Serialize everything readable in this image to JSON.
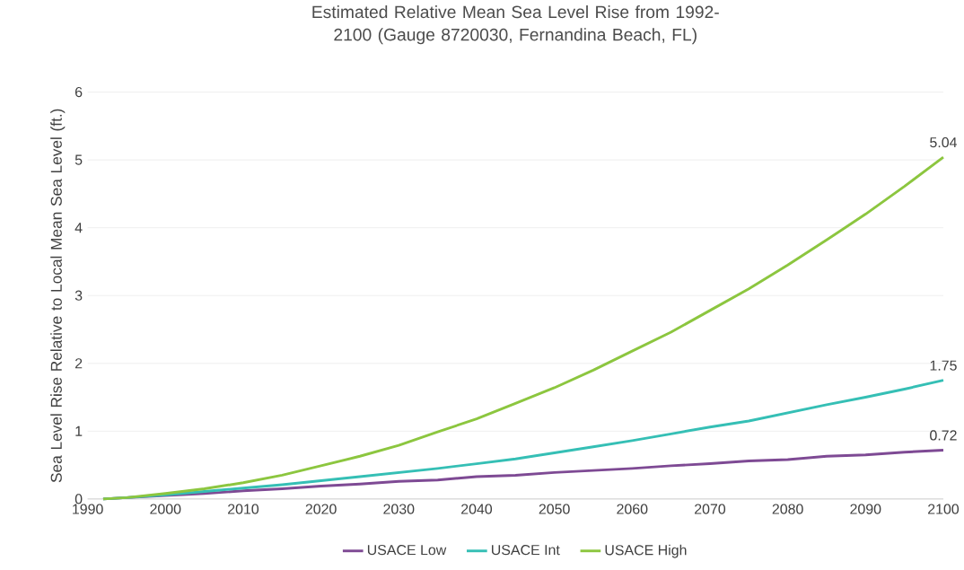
{
  "chart_data": {
    "type": "line",
    "title": "Estimated Relative Mean Sea Level Rise from 1992-2100 (Gauge 8720030, Fernandina Beach, FL)",
    "ylabel": "Sea Level Rise Relative to Local Mean Sea Level (ft.)",
    "x": [
      1992,
      1995,
      2000,
      2005,
      2010,
      2015,
      2020,
      2025,
      2030,
      2035,
      2040,
      2045,
      2050,
      2055,
      2060,
      2065,
      2070,
      2075,
      2080,
      2085,
      2090,
      2095,
      2100
    ],
    "series": [
      {
        "name": "USACE Low",
        "color": "#7e4a94",
        "values": [
          0,
          0.02,
          0.05,
          0.08,
          0.12,
          0.15,
          0.19,
          0.22,
          0.26,
          0.28,
          0.33,
          0.35,
          0.39,
          0.42,
          0.45,
          0.49,
          0.52,
          0.56,
          0.58,
          0.63,
          0.65,
          0.69,
          0.72
        ],
        "value_labels": [
          null,
          null,
          null,
          null,
          null,
          null,
          null,
          null,
          null,
          null,
          null,
          null,
          null,
          null,
          null,
          null,
          null,
          null,
          null,
          null,
          null,
          null,
          "0.72"
        ]
      },
      {
        "name": "USACE Int",
        "color": "#35bfb5",
        "values": [
          0,
          0.02,
          0.06,
          0.11,
          0.16,
          0.21,
          0.27,
          0.33,
          0.39,
          0.45,
          0.52,
          0.59,
          0.68,
          0.77,
          0.86,
          0.96,
          1.06,
          1.15,
          1.27,
          1.39,
          1.5,
          1.62,
          1.75
        ],
        "value_labels": [
          null,
          null,
          null,
          null,
          null,
          null,
          null,
          null,
          null,
          null,
          null,
          null,
          null,
          null,
          null,
          null,
          null,
          null,
          null,
          null,
          null,
          null,
          "1.75"
        ]
      },
      {
        "name": "USACE High",
        "color": "#8cc63f",
        "values": [
          0,
          0.02,
          0.08,
          0.15,
          0.24,
          0.35,
          0.49,
          0.63,
          0.79,
          0.99,
          1.18,
          1.41,
          1.64,
          1.9,
          2.18,
          2.46,
          2.78,
          3.1,
          3.45,
          3.82,
          4.2,
          4.61,
          5.04
        ],
        "value_labels": [
          null,
          null,
          null,
          null,
          null,
          null,
          null,
          null,
          null,
          null,
          null,
          null,
          null,
          null,
          null,
          null,
          null,
          null,
          null,
          null,
          null,
          null,
          "5.04"
        ]
      }
    ],
    "xlim": [
      1990,
      2100
    ],
    "xticks": [
      1990,
      2000,
      2010,
      2020,
      2030,
      2040,
      2050,
      2060,
      2070,
      2080,
      2090,
      2100
    ],
    "ylim": [
      0,
      6
    ],
    "yticks": [
      0,
      1,
      2,
      3,
      4,
      5,
      6
    ],
    "grid": "y",
    "legend": "bottom",
    "marker": "none",
    "line_style": "solid"
  }
}
